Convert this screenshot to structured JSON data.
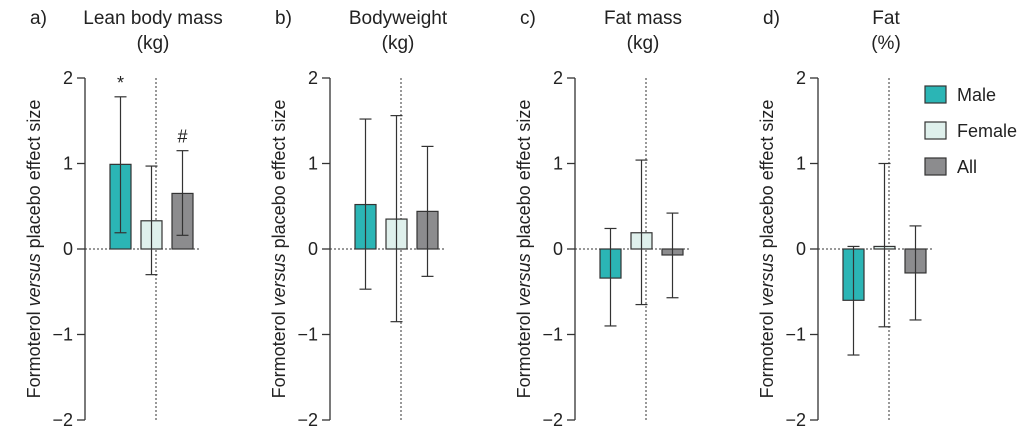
{
  "chart_data": [
    {
      "type": "bar",
      "panel_label": "a)",
      "title_lines": [
        "Lean body mass",
        "(kg)"
      ],
      "ylabel_parts": [
        "Formoterol ",
        "versus",
        " placebo effect size"
      ],
      "ylim": [
        -2,
        2
      ],
      "yticks": [
        "2",
        "1",
        "0",
        "−1",
        "−2"
      ],
      "categories": [
        "Male",
        "Female",
        "All"
      ],
      "values": [
        0.99,
        0.33,
        0.65
      ],
      "ci_low": [
        0.19,
        -0.3,
        0.16
      ],
      "ci_high": [
        1.78,
        0.97,
        1.15
      ],
      "annotations": [
        "*",
        "",
        "#"
      ]
    },
    {
      "type": "bar",
      "panel_label": "b)",
      "title_lines": [
        "Bodyweight",
        "(kg)"
      ],
      "ylabel_parts": [
        "Formoterol ",
        "versus",
        " placebo effect size"
      ],
      "ylim": [
        -2,
        2
      ],
      "yticks": [
        "2",
        "1",
        "0",
        "−1",
        "−2"
      ],
      "categories": [
        "Male",
        "Female",
        "All"
      ],
      "values": [
        0.52,
        0.35,
        0.44
      ],
      "ci_low": [
        -0.47,
        -0.85,
        -0.32
      ],
      "ci_high": [
        1.52,
        1.56,
        1.2
      ],
      "annotations": [
        "",
        "",
        ""
      ]
    },
    {
      "type": "bar",
      "panel_label": "c)",
      "title_lines": [
        "Fat mass",
        "(kg)"
      ],
      "ylabel_parts": [
        "Formoterol ",
        "versus",
        " placebo effect size"
      ],
      "ylim": [
        -2,
        2
      ],
      "yticks": [
        "2",
        "1",
        "0",
        "−1",
        "−2"
      ],
      "categories": [
        "Male",
        "Female",
        "All"
      ],
      "values": [
        -0.34,
        0.19,
        -0.07
      ],
      "ci_low": [
        -0.9,
        -0.65,
        -0.57
      ],
      "ci_high": [
        0.24,
        1.04,
        0.42
      ],
      "annotations": [
        "",
        "",
        ""
      ]
    },
    {
      "type": "bar",
      "panel_label": "d)",
      "title_lines": [
        "Fat",
        "(%)"
      ],
      "ylabel_parts": [
        "Formoterol ",
        "versus",
        " placebo effect size"
      ],
      "ylim": [
        -2,
        2
      ],
      "yticks": [
        "2",
        "1",
        "0",
        "−1",
        "−2"
      ],
      "categories": [
        "Male",
        "Female",
        "All"
      ],
      "values": [
        -0.6,
        0.03,
        -0.28
      ],
      "ci_low": [
        -1.24,
        -0.91,
        -0.83
      ],
      "ci_high": [
        0.03,
        1.0,
        0.27
      ],
      "annotations": [
        "",
        "",
        ""
      ]
    }
  ],
  "legend": {
    "placement": "right",
    "items": [
      {
        "label": "Male",
        "color": "#2bb5b5"
      },
      {
        "label": "Female",
        "color": "#dff0ec"
      },
      {
        "label": "All",
        "color": "#8c8c8e"
      }
    ]
  }
}
